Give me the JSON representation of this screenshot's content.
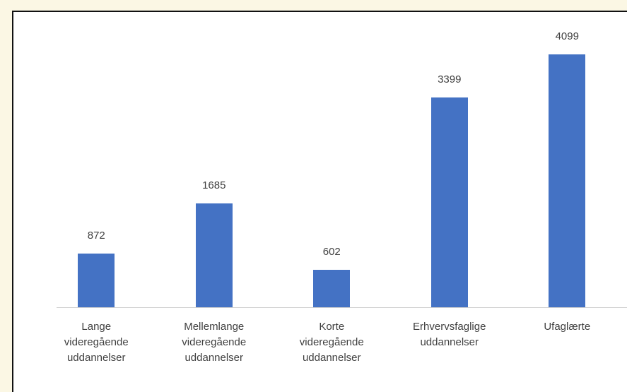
{
  "chart_data": {
    "type": "bar",
    "categories": [
      "Lange videregående uddannelser",
      "Mellemlange videregående uddannelser",
      "Korte videregående uddannelser",
      "Erhvervsfaglige uddannelser",
      "Ufaglærte"
    ],
    "values": [
      872,
      1685,
      602,
      3399,
      4099
    ],
    "color": "#4472c4"
  }
}
